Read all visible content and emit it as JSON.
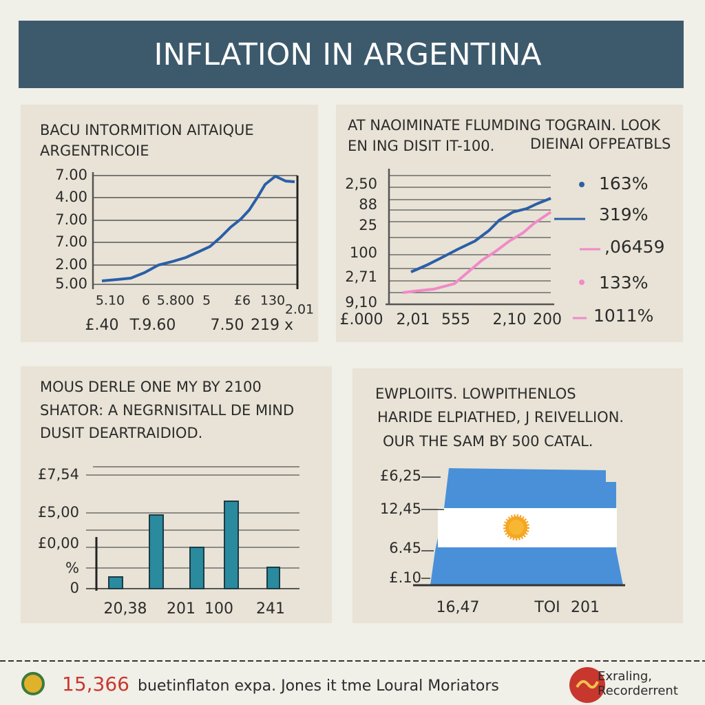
{
  "title": "INFLATION IN ARGENTINA",
  "panels": [
    {
      "heading": [
        "BACU INTORMITION AITAIQUE",
        "ARGENTRICOIE"
      ],
      "y_labels": [
        "7.00",
        "4.00",
        "7.00",
        "7.00",
        "2.00",
        "5.00"
      ],
      "x_labels_top": [
        "5.10",
        "6",
        "5.800",
        "5",
        "£6",
        "130",
        "2.01"
      ],
      "x_labels": [
        "£.40",
        "T.9.60",
        "7.50",
        "219 x"
      ]
    },
    {
      "heading": [
        "AT NAOIMINATE FLUMDING TOGRAIN. LOOK",
        "EN ING DISIT IT-100.",
        "DIEINAI OFPEATBLS"
      ],
      "y_labels": [
        "2,50",
        "88",
        "25",
        "100",
        "2,71",
        "9,10"
      ],
      "x_labels": [
        "£.000",
        "2,01",
        "555",
        "2,10",
        "200"
      ],
      "legend": [
        "163%",
        "319%",
        ",06459",
        "133%",
        "1011%"
      ]
    },
    {
      "heading": [
        "MOUS DERLE ONE MY BY 2100",
        "SHATOR: A NEGRNISITALL DE MIND",
        "DUSIT DEARTRAIDIOD."
      ],
      "y_labels": [
        "£7,54",
        "£5,00",
        "£0,00",
        "%",
        "0"
      ],
      "x_labels": [
        "20,38",
        "201",
        "100",
        "241"
      ]
    },
    {
      "heading": [
        "EWPLOIITS. LOWPITHENLOS",
        "HARIDE ELPIATHED, J REIVELLION.",
        "OUR THE SAM BY 500 CATAL."
      ],
      "y_labels": [
        "£6,25",
        "12,45",
        "6.45",
        "£.10"
      ],
      "x_labels": [
        "16,47",
        "TOI",
        "201"
      ]
    }
  ],
  "footer": {
    "number": "15,366",
    "text": "buetinflaton expa. Jones it tme Loural Moriators",
    "logo": [
      "Exraling,",
      "Recorderrent"
    ]
  }
}
